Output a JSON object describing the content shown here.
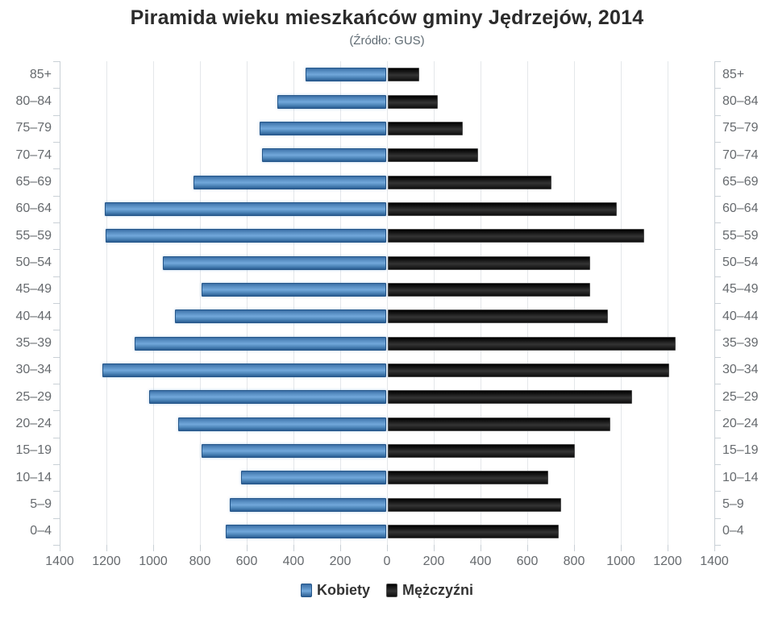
{
  "title": "Piramida wieku mieszkańców gminy Jędrzejów, 2014",
  "subtitle": "(Źródło: GUS)",
  "chart_data": {
    "type": "bar",
    "variant": "population-pyramid",
    "title": "Piramida wieku mieszkańców gminy Jędrzejów, 2014",
    "subtitle": "(Źródło: GUS)",
    "categories": [
      "85+",
      "80–84",
      "75–79",
      "70–74",
      "65–69",
      "60–64",
      "55–59",
      "50–54",
      "45–49",
      "40–44",
      "35–39",
      "30–34",
      "25–29",
      "20–24",
      "15–19",
      "10–14",
      "5–9",
      "0–4"
    ],
    "series": [
      {
        "name": "Kobiety",
        "side": "left",
        "color": "#4c86bc",
        "values": [
          345,
          465,
          540,
          530,
          825,
          1205,
          1200,
          955,
          790,
          905,
          1075,
          1215,
          1015,
          890,
          790,
          620,
          670,
          685
        ]
      },
      {
        "name": "Mężczyźni",
        "side": "right",
        "color": "#1a1a1a",
        "values": [
          135,
          215,
          320,
          385,
          700,
          980,
          1095,
          865,
          865,
          940,
          1230,
          1205,
          1045,
          950,
          800,
          685,
          740,
          730
        ]
      }
    ],
    "x_axis": {
      "max": 1400,
      "tick_interval": 200,
      "tick_labels": [
        "1400",
        "1200",
        "1000",
        "800",
        "600",
        "400",
        "200",
        "0",
        "200",
        "400",
        "600",
        "800",
        "1000",
        "1200",
        "1400"
      ]
    },
    "grid": true,
    "legend_position": "bottom",
    "colors": {
      "grid": "#e4e7ea",
      "axis": "#c9d0d6",
      "axis_text": "#666a6e",
      "title_text": "#2b2b2b",
      "subtitle_text": "#5f6b73",
      "legend_text": "#333333"
    }
  }
}
